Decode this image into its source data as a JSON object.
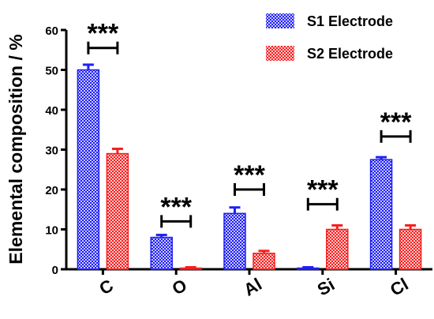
{
  "chart_data": {
    "type": "bar",
    "title": "",
    "xlabel": "",
    "ylabel": "Elemental composition / %",
    "ylim": [
      0,
      60
    ],
    "yticks": [
      0,
      10,
      20,
      30,
      40,
      50,
      60
    ],
    "categories": [
      "C",
      "O",
      "Al",
      "Si",
      "Cl"
    ],
    "series": [
      {
        "name": "S1 Electrode",
        "values": [
          50,
          8,
          14,
          0.3,
          27.5
        ],
        "errors": [
          1.3,
          0.6,
          1.5,
          0.2,
          0.6
        ],
        "color": "#1f1ff5"
      },
      {
        "name": "S2 Electrode",
        "values": [
          29,
          0.3,
          4,
          10,
          10
        ],
        "errors": [
          1.2,
          0.2,
          0.6,
          1.0,
          1.0
        ],
        "color": "#f51f1f"
      }
    ],
    "significance": [
      {
        "category": "C",
        "label": "***",
        "level": 55.5
      },
      {
        "category": "O",
        "label": "***",
        "level": 12
      },
      {
        "category": "Al",
        "label": "***",
        "level": 20
      },
      {
        "category": "Si",
        "label": "***",
        "level": 16.3
      },
      {
        "category": "Cl",
        "label": "***",
        "level": 33.3
      }
    ],
    "legend_position": "top-right",
    "grid": false
  }
}
